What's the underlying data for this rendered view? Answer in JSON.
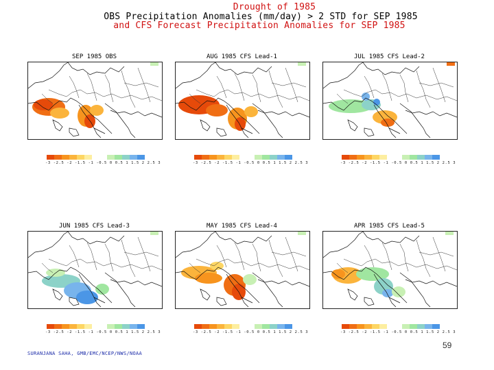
{
  "title": {
    "line1": "Drought of 1985",
    "line2": "OBS Precipitation Anomalies (mm/day) > 2 STD for SEP 1985",
    "line3": "and CFS Forecast Precipitation Anomalies for SEP 1985"
  },
  "panels": [
    {
      "title": "SEP 1985 OBS"
    },
    {
      "title": "AUG 1985 CFS Lead-1"
    },
    {
      "title": "JUL 1985 CFS Lead-2"
    },
    {
      "title": "JUN 1985 CFS Lead-3"
    },
    {
      "title": "MAY 1985 CFS Lead-4"
    },
    {
      "title": "APR 1985 CFS Lead-5"
    }
  ],
  "colorbar": {
    "labels": "-3 -2.5 -2 -1.5 -1 -0.5  0  0.5   1  1.5  2  2.5  3",
    "colors": [
      "#e64a0a",
      "#f06e14",
      "#f7941e",
      "#fbb43c",
      "#fdd664",
      "#fdeea0",
      "#ffffff",
      "#ffffff",
      "#c8f0b4",
      "#a0e6a0",
      "#8cd2c8",
      "#78b4ec",
      "#4b96e6"
    ]
  },
  "footer": "SURANJANA SAHA, GMB/EMC/NCEP/NWS/NOAA",
  "page_number": "59"
}
